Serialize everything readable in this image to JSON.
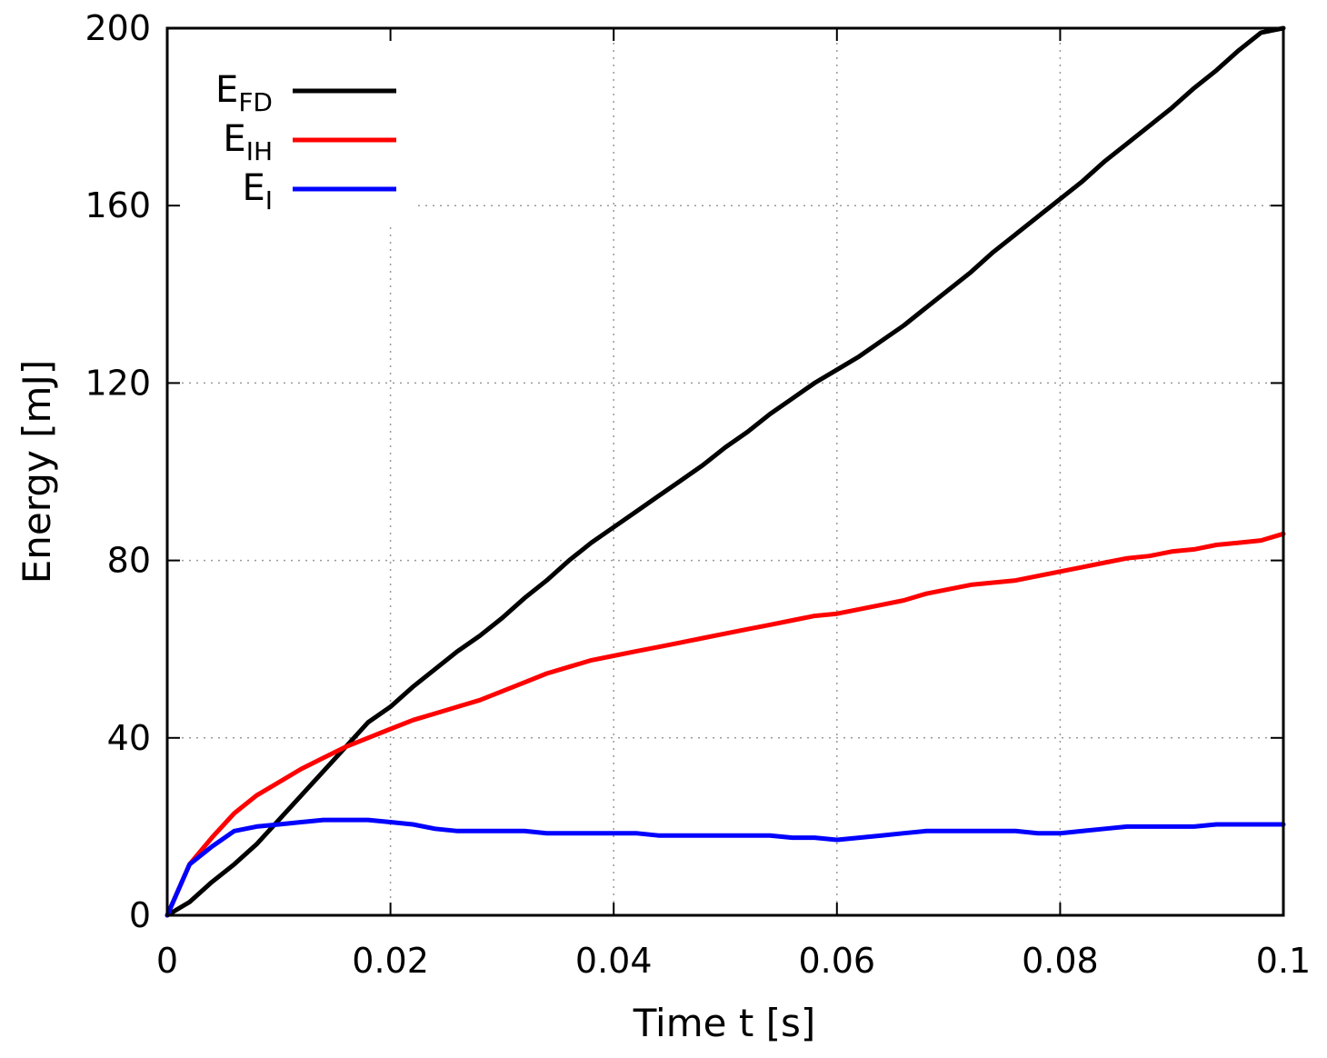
{
  "chart_data": {
    "type": "line",
    "title": "",
    "xlabel": "Time t [s]",
    "ylabel": "Energy [mJ]",
    "xlim": [
      0,
      0.1
    ],
    "ylim": [
      0,
      200
    ],
    "xticks": [
      0,
      0.02,
      0.04,
      0.06,
      0.08,
      0.1
    ],
    "xtick_labels": [
      "0",
      "0.02",
      "0.04",
      "0.06",
      "0.08",
      "0.1"
    ],
    "yticks": [
      0,
      40,
      80,
      120,
      160,
      200
    ],
    "ytick_labels": [
      "0",
      "40",
      "80",
      "120",
      "160",
      "200"
    ],
    "grid": true,
    "legend_position": "top-left",
    "series": [
      {
        "name": "E_FD",
        "label_main": "E",
        "label_sub": "FD",
        "color": "#000000",
        "x": [
          0,
          0.002,
          0.004,
          0.006,
          0.008,
          0.01,
          0.012,
          0.014,
          0.016,
          0.018,
          0.02,
          0.022,
          0.024,
          0.026,
          0.028,
          0.03,
          0.032,
          0.034,
          0.036,
          0.038,
          0.04,
          0.042,
          0.044,
          0.046,
          0.048,
          0.05,
          0.052,
          0.054,
          0.056,
          0.058,
          0.06,
          0.062,
          0.064,
          0.066,
          0.068,
          0.07,
          0.072,
          0.074,
          0.076,
          0.078,
          0.08,
          0.082,
          0.084,
          0.086,
          0.088,
          0.09,
          0.092,
          0.094,
          0.096,
          0.098,
          0.1
        ],
        "y": [
          0,
          3,
          7.5,
          11.5,
          16,
          21.5,
          27,
          32.5,
          38,
          43.5,
          47,
          51.5,
          55.5,
          59.5,
          63,
          67,
          71.5,
          75.5,
          80,
          84,
          87.5,
          91,
          94.5,
          98,
          101.5,
          105.5,
          109,
          113,
          116.5,
          120,
          123,
          126,
          129.5,
          133,
          137,
          141,
          145,
          149.5,
          153.5,
          157.5,
          161.5,
          165.5,
          170,
          174,
          178,
          182,
          186.5,
          190.5,
          195,
          199,
          200
        ]
      },
      {
        "name": "E_IH",
        "label_main": "E",
        "label_sub": "IH",
        "color": "#ff0000",
        "x": [
          0,
          0.002,
          0.004,
          0.006,
          0.008,
          0.01,
          0.012,
          0.014,
          0.016,
          0.018,
          0.02,
          0.022,
          0.024,
          0.026,
          0.028,
          0.03,
          0.032,
          0.034,
          0.036,
          0.038,
          0.04,
          0.042,
          0.044,
          0.046,
          0.048,
          0.05,
          0.052,
          0.054,
          0.056,
          0.058,
          0.06,
          0.062,
          0.064,
          0.066,
          0.068,
          0.07,
          0.072,
          0.074,
          0.076,
          0.078,
          0.08,
          0.082,
          0.084,
          0.086,
          0.088,
          0.09,
          0.092,
          0.094,
          0.096,
          0.098,
          0.1
        ],
        "y": [
          0,
          11.5,
          17.5,
          23,
          27,
          30,
          33,
          35.5,
          38,
          40,
          42,
          44,
          45.5,
          47,
          48.5,
          50.5,
          52.5,
          54.5,
          56,
          57.5,
          58.5,
          59.5,
          60.5,
          61.5,
          62.5,
          63.5,
          64.5,
          65.5,
          66.5,
          67.5,
          68,
          69,
          70,
          71,
          72.5,
          73.5,
          74.5,
          75,
          75.5,
          76.5,
          77.5,
          78.5,
          79.5,
          80.5,
          81,
          82,
          82.5,
          83.5,
          84,
          84.5,
          86
        ]
      },
      {
        "name": "E_I",
        "label_main": "E",
        "label_sub": "I",
        "color": "#0000ff",
        "x": [
          0,
          0.002,
          0.004,
          0.006,
          0.008,
          0.01,
          0.012,
          0.014,
          0.016,
          0.018,
          0.02,
          0.022,
          0.024,
          0.026,
          0.028,
          0.03,
          0.032,
          0.034,
          0.036,
          0.038,
          0.04,
          0.042,
          0.044,
          0.046,
          0.048,
          0.05,
          0.052,
          0.054,
          0.056,
          0.058,
          0.06,
          0.062,
          0.064,
          0.066,
          0.068,
          0.07,
          0.072,
          0.074,
          0.076,
          0.078,
          0.08,
          0.082,
          0.084,
          0.086,
          0.088,
          0.09,
          0.092,
          0.094,
          0.096,
          0.098,
          0.1
        ],
        "y": [
          0,
          11.5,
          15.5,
          19,
          20,
          20.5,
          21,
          21.5,
          21.5,
          21.5,
          21,
          20.5,
          19.5,
          19,
          19,
          19,
          19,
          18.5,
          18.5,
          18.5,
          18.5,
          18.5,
          18,
          18,
          18,
          18,
          18,
          18,
          17.5,
          17.5,
          17,
          17.5,
          18,
          18.5,
          19,
          19,
          19,
          19,
          19,
          18.5,
          18.5,
          19,
          19.5,
          20,
          20,
          20,
          20,
          20.5,
          20.5,
          20.5,
          20.5
        ]
      }
    ]
  }
}
